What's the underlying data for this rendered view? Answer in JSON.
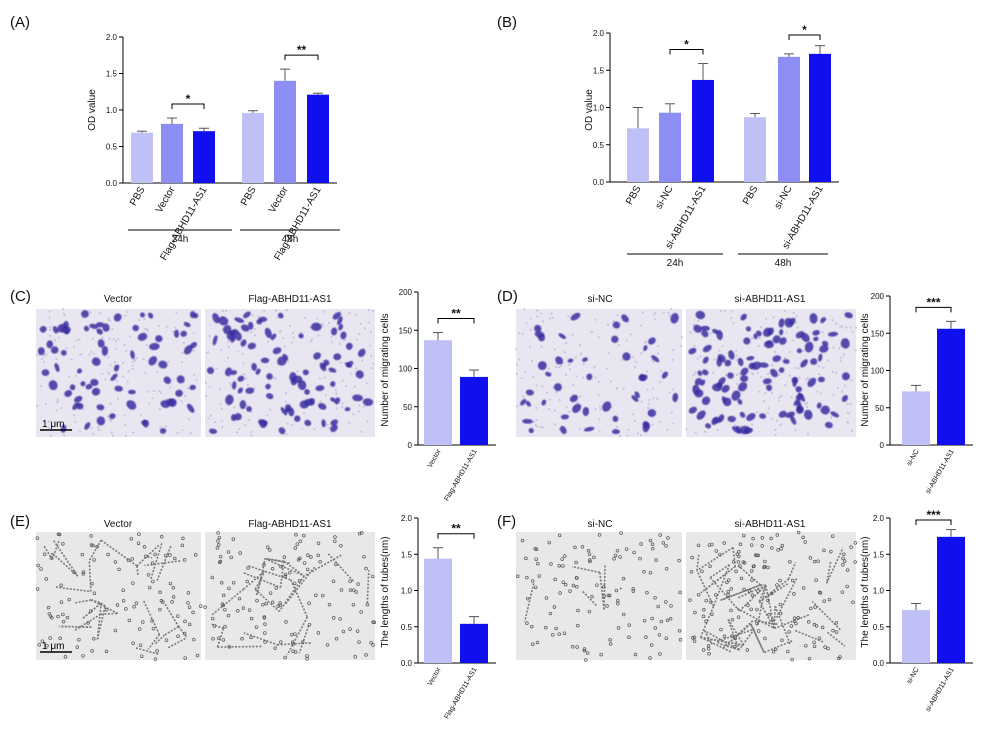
{
  "colors": {
    "light": "#bfc0f6",
    "medium": "#8c8ef4",
    "dark": "#1010ef",
    "err": "#555555",
    "stain": "#3a2fa0",
    "stain_bg": "#e9e6f1",
    "tube_bg": "#e8e8e8"
  },
  "panels": {
    "A": {
      "label": "(A)"
    },
    "B": {
      "label": "(B)"
    },
    "C": {
      "label": "(C)",
      "micro_left": "Vector",
      "micro_right": "Flag-ABHD11-AS1",
      "scale_bar": "1 μm"
    },
    "D": {
      "label": "(D)",
      "micro_left": "si-NC",
      "micro_right": "si-ABHD11-AS1"
    },
    "E": {
      "label": "(E)",
      "micro_left": "Vector",
      "micro_right": "Flag-ABHD11-AS1",
      "scale_bar": "1 μm"
    },
    "F": {
      "label": "(F)",
      "micro_left": "si-NC",
      "micro_right": "si-ABHD11-AS1"
    }
  },
  "chart_data": [
    {
      "panel": "A",
      "type": "bar",
      "ylabel": "OD value",
      "ylim": [
        0,
        2.0
      ],
      "yticks": [
        "0.0",
        "0.5",
        "1.0",
        "1.5",
        "2.0"
      ],
      "groups": [
        "24h",
        "48h"
      ],
      "categories": [
        "PBS",
        "Vector",
        "Flag-ABHD11-AS1",
        "PBS",
        "Vector",
        "Flag-ABHD11-AS1"
      ],
      "values": [
        0.69,
        0.81,
        0.71,
        0.96,
        1.4,
        1.21
      ],
      "errors": [
        0.02,
        0.08,
        0.04,
        0.03,
        0.16,
        0.02
      ],
      "significance": [
        {
          "from": 1,
          "to": 2,
          "label": "*"
        },
        {
          "from": 4,
          "to": 5,
          "label": "**"
        }
      ]
    },
    {
      "panel": "B",
      "type": "bar",
      "ylabel": "OD value",
      "ylim": [
        0,
        2.0
      ],
      "yticks": [
        "0.0",
        "0.5",
        "1.0",
        "1.5",
        "2.0"
      ],
      "groups": [
        "24h",
        "48h"
      ],
      "categories": [
        "PBS",
        "si-NC",
        "si-ABHD11-AS1",
        "PBS",
        "si-NC",
        "si-ABHD11-AS1"
      ],
      "values": [
        0.72,
        0.93,
        1.37,
        0.87,
        1.68,
        1.72
      ],
      "errors": [
        0.28,
        0.12,
        0.22,
        0.05,
        0.04,
        0.11
      ],
      "significance": [
        {
          "from": 1,
          "to": 2,
          "label": "*"
        },
        {
          "from": 4,
          "to": 5,
          "label": "*"
        }
      ]
    },
    {
      "panel": "C",
      "type": "bar",
      "ylabel": "Number of migrating cells",
      "ylim": [
        0,
        200
      ],
      "yticks": [
        "0",
        "50",
        "100",
        "150",
        "200"
      ],
      "categories": [
        "Vector",
        "Flag-ABHD11-AS1"
      ],
      "values": [
        137,
        89
      ],
      "errors": [
        10,
        9
      ],
      "significance": [
        {
          "from": 0,
          "to": 1,
          "label": "**"
        }
      ]
    },
    {
      "panel": "D",
      "type": "bar",
      "ylabel": "Number of migrating cells",
      "ylim": [
        0,
        200
      ],
      "yticks": [
        "0",
        "50",
        "100",
        "150",
        "200"
      ],
      "categories": [
        "si-NC",
        "si-ABHD11-AS1"
      ],
      "values": [
        72,
        156
      ],
      "errors": [
        8,
        10
      ],
      "significance": [
        {
          "from": 0,
          "to": 1,
          "label": "***"
        }
      ]
    },
    {
      "panel": "E",
      "type": "bar",
      "ylabel": "The lengths of tubes(nm)",
      "ylim": [
        0,
        2.0
      ],
      "yticks": [
        "0.0",
        "0.5",
        "1.0",
        "1.5",
        "2.0"
      ],
      "categories": [
        "Vector",
        "Flag-ABHD11-AS1"
      ],
      "values": [
        1.44,
        0.54
      ],
      "errors": [
        0.15,
        0.1
      ],
      "significance": [
        {
          "from": 0,
          "to": 1,
          "label": "**"
        }
      ]
    },
    {
      "panel": "F",
      "type": "bar",
      "ylabel": "The lengths of tubes(nm)",
      "ylim": [
        0,
        2.0
      ],
      "yticks": [
        "0.0",
        "0.5",
        "1.0",
        "1.5",
        "2.0"
      ],
      "categories": [
        "si-NC",
        "si-ABHD11-AS1"
      ],
      "values": [
        0.73,
        1.74
      ],
      "errors": [
        0.09,
        0.1
      ],
      "significance": [
        {
          "from": 0,
          "to": 1,
          "label": "***"
        }
      ]
    }
  ]
}
